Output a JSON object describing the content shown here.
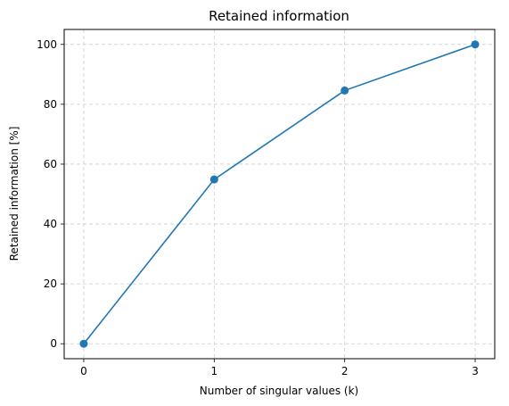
{
  "chart_data": {
    "type": "line",
    "title": "Retained information",
    "xlabel": "Number of singular values (k)",
    "ylabel": "Retained information [%]",
    "x": [
      0,
      1,
      2,
      3
    ],
    "series": [
      {
        "values": [
          0,
          54.9,
          84.6,
          100
        ],
        "color": "#1f77b4",
        "marker": "circle"
      }
    ],
    "xlim": [
      -0.15,
      3.15
    ],
    "ylim": [
      -5,
      105
    ],
    "xticks": [
      0,
      1,
      2,
      3
    ],
    "yticks": [
      0,
      20,
      40,
      60,
      80,
      100
    ],
    "grid": true,
    "grid_style": "dashed",
    "grid_color": "#cccccc"
  }
}
